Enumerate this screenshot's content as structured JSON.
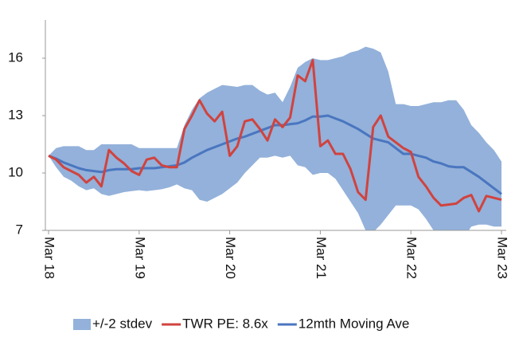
{
  "chart_data": {
    "type": "line",
    "categories": [
      "Mar 18",
      null,
      null,
      null,
      null,
      null,
      null,
      null,
      null,
      null,
      null,
      null,
      "Mar 19",
      null,
      null,
      null,
      null,
      null,
      null,
      null,
      null,
      null,
      null,
      null,
      "Mar 20",
      null,
      null,
      null,
      null,
      null,
      null,
      null,
      null,
      null,
      null,
      null,
      "Mar 21",
      null,
      null,
      null,
      null,
      null,
      null,
      null,
      null,
      null,
      null,
      null,
      "Mar 22",
      null,
      null,
      null,
      null,
      null,
      null,
      null,
      null,
      null,
      null,
      null,
      "Mar 23"
    ],
    "band": {
      "name": "+/-2 stdev",
      "color": "#93b1da",
      "upper": [
        10.9,
        11.3,
        11.4,
        11.4,
        11.4,
        11.2,
        11.2,
        11.5,
        11.5,
        11.5,
        11.5,
        11.5,
        11.3,
        11.3,
        11.3,
        11.3,
        11.3,
        11.3,
        12.5,
        13.3,
        13.9,
        14.2,
        14.4,
        14.6,
        14.55,
        14.5,
        14.6,
        14.6,
        14.3,
        14.1,
        14.2,
        13.7,
        14.5,
        15.5,
        15.8,
        16.0,
        15.9,
        15.9,
        16.0,
        16.1,
        16.3,
        16.4,
        16.6,
        16.5,
        16.3,
        15.3,
        13.6,
        13.6,
        13.5,
        13.5,
        13.6,
        13.7,
        13.7,
        13.8,
        13.8,
        13.3,
        12.5,
        12.1,
        11.6,
        11.2,
        10.6
      ],
      "lower": [
        10.9,
        10.3,
        9.8,
        9.6,
        9.3,
        9.1,
        9.2,
        8.9,
        8.8,
        8.9,
        9.0,
        9.05,
        9.1,
        9.05,
        9.1,
        9.15,
        9.25,
        9.4,
        9.2,
        9.1,
        8.6,
        8.5,
        8.7,
        8.9,
        9.2,
        9.5,
        10.0,
        10.4,
        10.8,
        10.8,
        10.9,
        10.8,
        10.9,
        10.4,
        10.3,
        9.9,
        10.0,
        10.0,
        9.7,
        9.1,
        8.5,
        7.9,
        7.0,
        6.9,
        7.3,
        7.8,
        8.3,
        8.3,
        8.3,
        8.1,
        7.6,
        7.0,
        6.7,
        6.5,
        6.5,
        6.6,
        7.2,
        7.3,
        7.3,
        7.2,
        7.2
      ]
    },
    "series": [
      {
        "name": "TWR PE: 8.6x",
        "color": "#d0433f",
        "values": [
          10.9,
          10.7,
          10.3,
          10.1,
          9.9,
          9.5,
          9.8,
          9.3,
          11.2,
          10.8,
          10.5,
          10.1,
          9.9,
          10.7,
          10.8,
          10.4,
          10.3,
          10.3,
          12.3,
          13.0,
          13.8,
          13.1,
          12.7,
          13.2,
          10.9,
          11.4,
          12.7,
          12.8,
          12.3,
          11.7,
          12.8,
          12.4,
          12.9,
          15.1,
          14.8,
          15.9,
          11.4,
          11.7,
          11.0,
          11.0,
          10.2,
          9.0,
          8.6,
          12.4,
          13.0,
          11.9,
          11.6,
          11.3,
          11.1,
          9.8,
          9.3,
          8.7,
          8.3,
          8.35,
          8.4,
          8.7,
          8.85,
          8.0,
          8.8,
          8.7,
          8.6
        ]
      },
      {
        "name": "12mth Moving Ave",
        "color": "#4a76c0",
        "values": [
          10.9,
          10.75,
          10.55,
          10.4,
          10.25,
          10.15,
          10.1,
          10.05,
          10.15,
          10.2,
          10.2,
          10.2,
          10.25,
          10.25,
          10.25,
          10.3,
          10.35,
          10.4,
          10.55,
          10.8,
          11.0,
          11.2,
          11.35,
          11.5,
          11.65,
          11.8,
          11.9,
          12.05,
          12.2,
          12.35,
          12.5,
          12.5,
          12.55,
          12.6,
          12.75,
          12.95,
          12.95,
          13.0,
          12.85,
          12.7,
          12.5,
          12.3,
          12.05,
          11.8,
          11.7,
          11.6,
          11.3,
          11.0,
          11.0,
          10.9,
          10.8,
          10.6,
          10.5,
          10.35,
          10.3,
          10.3,
          10.05,
          9.8,
          9.5,
          9.2,
          8.9
        ]
      }
    ],
    "ylim": [
      7,
      18
    ],
    "yticks": [
      7,
      10,
      13,
      16
    ]
  }
}
